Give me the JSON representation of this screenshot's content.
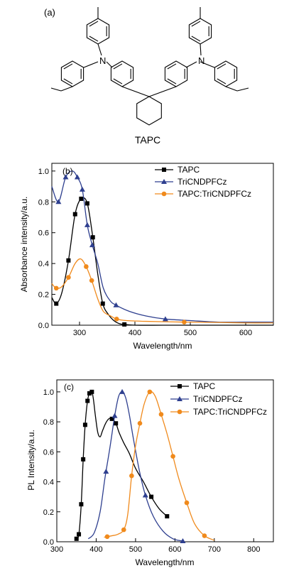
{
  "panel_a": {
    "label": "(a)",
    "compound": "TAPC",
    "atom_n": "N"
  },
  "series_styles": [
    {
      "name": "TAPC",
      "color": "#000000",
      "marker": "square"
    },
    {
      "name": "TriCNDPFCz",
      "color": "#2e3f8f",
      "marker": "triangle"
    },
    {
      "name": "TAPC:TriCNDPFCz",
      "color": "#f08a1c",
      "marker": "circle"
    }
  ],
  "chart_data": [
    {
      "type": "line",
      "panel_label": "(b)",
      "xlabel": "Wavelength/nm",
      "ylabel": "Absorbance intensity/a.u.",
      "xlim": [
        250,
        650
      ],
      "ylim": [
        0,
        1.05
      ],
      "xticks": [
        300,
        400,
        500,
        600
      ],
      "yticks": [
        0.0,
        0.2,
        0.4,
        0.6,
        0.8,
        1.0
      ],
      "legend_position": "top-right",
      "series": [
        {
          "name": "TAPC",
          "x": [
            250,
            258,
            268,
            280,
            292,
            303,
            314,
            324,
            333,
            342,
            352,
            362,
            372,
            381,
            400,
            450,
            500,
            550,
            600,
            650
          ],
          "values": [
            0.18,
            0.14,
            0.21,
            0.42,
            0.72,
            0.82,
            0.79,
            0.57,
            0.33,
            0.14,
            0.07,
            0.03,
            0.01,
            0.005,
            0.0,
            0.0,
            0.0,
            0.0,
            0.0,
            0.0
          ],
          "markers_x": [
            258,
            280,
            292,
            303,
            314,
            324,
            342,
            381
          ]
        },
        {
          "name": "TriCNDPFCz",
          "x": [
            250,
            262,
            275,
            287,
            296,
            305,
            314,
            323,
            333,
            343,
            355,
            366,
            390,
            420,
            455,
            500,
            550,
            600,
            650
          ],
          "values": [
            0.9,
            0.8,
            0.96,
            1.0,
            0.96,
            0.88,
            0.65,
            0.52,
            0.4,
            0.24,
            0.16,
            0.13,
            0.09,
            0.06,
            0.04,
            0.03,
            0.02,
            0.02,
            0.02
          ],
          "markers_x": [
            262,
            275,
            296,
            305,
            314,
            323,
            366,
            455
          ]
        },
        {
          "name": "TAPC:TriCNDPFCz",
          "x": [
            250,
            258,
            268,
            280,
            292,
            302,
            312,
            322,
            333,
            343,
            356,
            367,
            385,
            420,
            489,
            550,
            600,
            650
          ],
          "values": [
            0.27,
            0.24,
            0.25,
            0.31,
            0.4,
            0.43,
            0.38,
            0.29,
            0.17,
            0.09,
            0.06,
            0.04,
            0.03,
            0.025,
            0.02,
            0.018,
            0.015,
            0.015
          ],
          "markers_x": [
            258,
            280,
            312,
            322,
            367,
            489
          ]
        }
      ]
    },
    {
      "type": "line",
      "panel_label": "(c)",
      "xlabel": "Wavelength/nm",
      "ylabel": "PL Intensity/a.u.",
      "xlim": [
        300,
        850
      ],
      "ylim": [
        0,
        1.08
      ],
      "xticks": [
        300,
        400,
        500,
        600,
        700,
        800
      ],
      "yticks": [
        0.0,
        0.2,
        0.4,
        0.6,
        0.8,
        1.0
      ],
      "legend_position": "top-right",
      "series": [
        {
          "name": "TAPC",
          "x": [
            350,
            356,
            362,
            367,
            372,
            378,
            383,
            389,
            393,
            398,
            404,
            410,
            416,
            424,
            432,
            440,
            450,
            458,
            470,
            484,
            500,
            520,
            540,
            560,
            580
          ],
          "values": [
            0.02,
            0.05,
            0.25,
            0.55,
            0.78,
            0.94,
            0.99,
            1.0,
            0.95,
            0.84,
            0.73,
            0.7,
            0.74,
            0.79,
            0.82,
            0.82,
            0.79,
            0.73,
            0.66,
            0.59,
            0.49,
            0.4,
            0.3,
            0.22,
            0.17
          ],
          "markers_x": [
            350,
            356,
            362,
            367,
            372,
            378,
            383,
            389,
            440,
            450,
            540,
            580
          ]
        },
        {
          "name": "TriCNDPFCz",
          "x": [
            380,
            395,
            410,
            422,
            435,
            447,
            457,
            466,
            475,
            484,
            495,
            510,
            525,
            545,
            570,
            595,
            620
          ],
          "values": [
            0.02,
            0.06,
            0.2,
            0.42,
            0.63,
            0.84,
            0.97,
            1.0,
            0.96,
            0.85,
            0.68,
            0.47,
            0.31,
            0.17,
            0.07,
            0.02,
            0.005
          ],
          "markers_x": [
            425,
            447,
            466,
            525,
            620
          ]
        },
        {
          "name": "TAPC:TriCNDPFCz",
          "x": [
            420,
            440,
            455,
            470,
            480,
            490,
            500,
            511,
            522,
            536,
            550,
            565,
            580,
            595,
            610,
            630,
            650,
            675,
            700
          ],
          "values": [
            0.03,
            0.04,
            0.05,
            0.08,
            0.18,
            0.44,
            0.64,
            0.79,
            0.92,
            1.0,
            0.97,
            0.85,
            0.72,
            0.57,
            0.42,
            0.26,
            0.12,
            0.04,
            0.01
          ],
          "markers_x": [
            428,
            470,
            490,
            511,
            536,
            565,
            595,
            630,
            675
          ]
        }
      ]
    }
  ]
}
